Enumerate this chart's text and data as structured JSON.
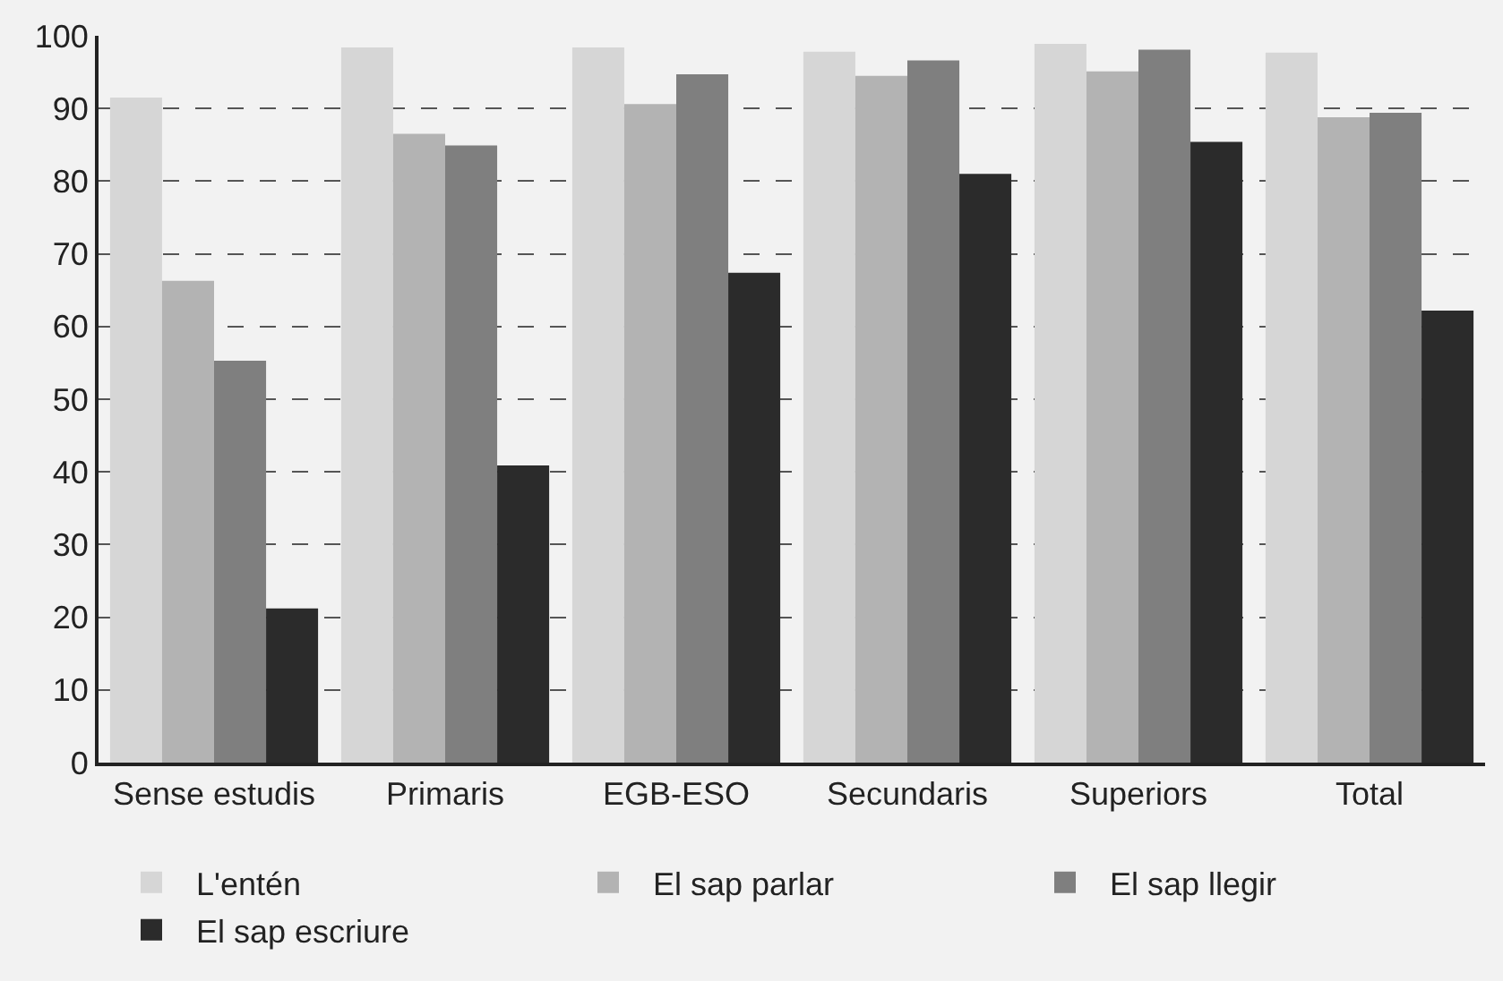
{
  "chart_data": {
    "type": "bar",
    "categories": [
      "Sense estudis",
      "Primaris",
      "EGB-ESO",
      "Secundaris",
      "Superiors",
      "Total"
    ],
    "series": [
      {
        "name": "L'entén",
        "color": "#d6d6d6",
        "values": [
          91.5,
          98.4,
          98.4,
          97.8,
          98.9,
          97.7
        ]
      },
      {
        "name": "El sap parlar",
        "color": "#b3b3b3",
        "values": [
          66.3,
          86.5,
          90.6,
          94.5,
          95.1,
          88.8
        ]
      },
      {
        "name": "El sap llegir",
        "color": "#7f7f7f",
        "values": [
          55.3,
          84.9,
          94.7,
          96.6,
          98.1,
          89.4
        ]
      },
      {
        "name": "El sap escriure",
        "color": "#2b2b2b",
        "values": [
          21.2,
          40.9,
          67.4,
          81.0,
          85.4,
          62.2
        ]
      }
    ],
    "ylim": [
      0,
      100
    ],
    "yticks": [
      0,
      10,
      20,
      30,
      40,
      50,
      60,
      70,
      80,
      90,
      100
    ],
    "grid": "y",
    "legend": "bottom"
  }
}
